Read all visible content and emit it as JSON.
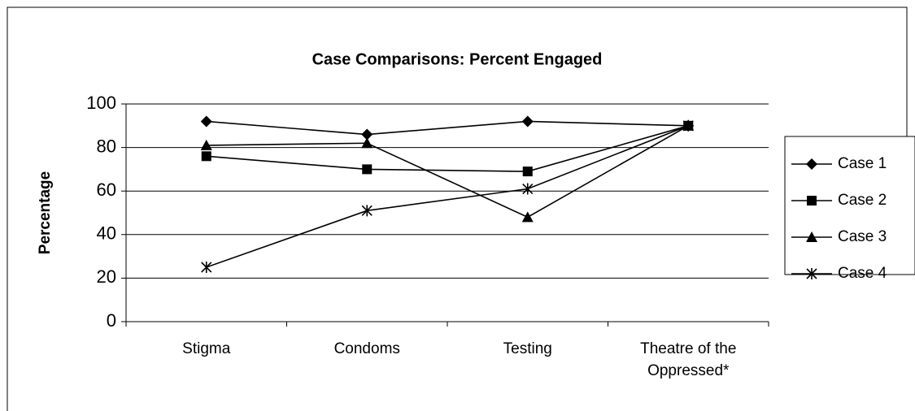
{
  "chart_data": {
    "type": "line",
    "title": "Case Comparisons: Percent Engaged",
    "y_label": "Percentage",
    "categories": [
      "Stigma",
      "Condoms",
      "Testing",
      "Theatre of the Oppressed*"
    ],
    "series": [
      {
        "name": "Case 1",
        "color": "#000000",
        "marker": "diamond",
        "values": [
          92,
          86,
          92,
          90
        ]
      },
      {
        "name": "Case 2",
        "color": "#000000",
        "marker": "square",
        "values": [
          76,
          70,
          69,
          90
        ]
      },
      {
        "name": "Case 3",
        "color": "#000000",
        "marker": "triangle",
        "values": [
          81,
          82,
          48,
          90
        ]
      },
      {
        "name": "Case 4",
        "color": "#000000",
        "marker": "asterisk",
        "values": [
          25,
          51,
          61,
          90
        ]
      }
    ],
    "ylim": [
      0,
      100
    ],
    "yticks": [
      0,
      20,
      40,
      60,
      80,
      100
    ],
    "grid": true,
    "legend": "right"
  }
}
